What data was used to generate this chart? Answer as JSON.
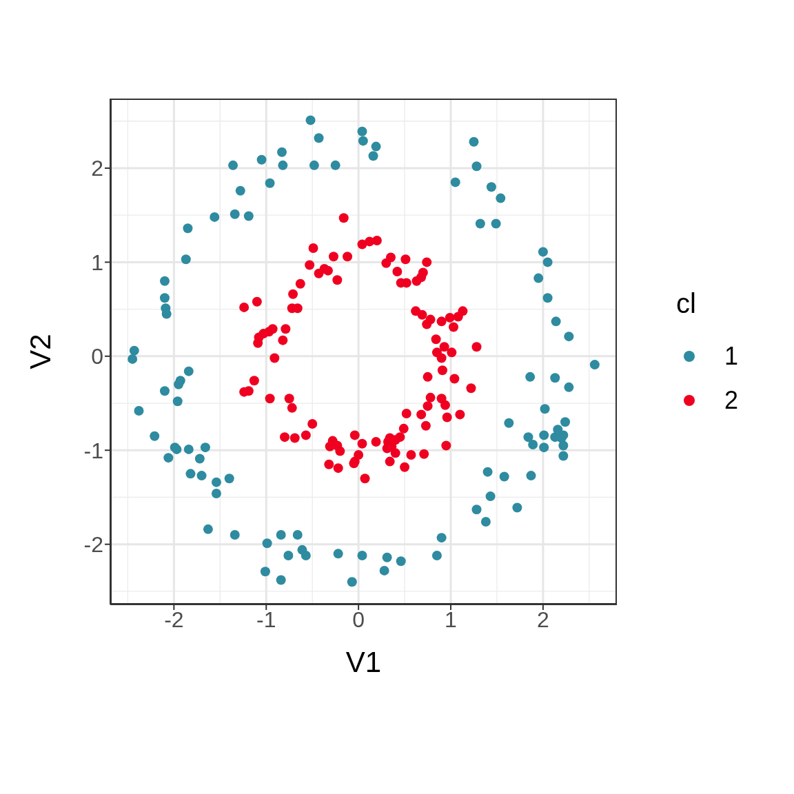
{
  "chart_data": {
    "type": "scatter",
    "xlabel": "V1",
    "ylabel": "V2",
    "legend_title": "cl",
    "xlim": [
      -2.69,
      2.8
    ],
    "ylim": [
      -2.64,
      2.74
    ],
    "xticks": [
      -2,
      -1,
      0,
      1,
      2
    ],
    "yticks": [
      -2,
      -1,
      0,
      1,
      2
    ],
    "grid": true,
    "legend": "right",
    "marker": "circle",
    "series": [
      {
        "name": "1",
        "color": "#2e8ba0",
        "x": [
          -0.52,
          -0.43,
          0.04,
          0.05,
          0.19,
          0.16,
          -0.48,
          -0.25,
          -0.83,
          -0.82,
          -1.05,
          -1.36,
          -0.96,
          -1.28,
          -1.56,
          -1.34,
          -1.19,
          -1.85,
          -1.87,
          -2.1,
          -2.1,
          -2.09,
          -2.08,
          -2.43,
          -2.45,
          -2.38,
          -1.84,
          -1.93,
          -1.95,
          -2.1,
          -1.96,
          -2.21,
          -1.99,
          -1.97,
          -1.84,
          -1.66,
          -2.06,
          -1.72,
          -1.82,
          -1.7,
          -1.54,
          -1.4,
          -1.54,
          -1.63,
          -1.34,
          -0.84,
          -0.66,
          -0.99,
          -0.61,
          -0.57,
          -0.76,
          -1.01,
          -0.84,
          -0.22,
          0.04,
          0.31,
          0.28,
          0.46,
          -0.07,
          0.9,
          0.85,
          1.25,
          1.28,
          1.05,
          1.44,
          1.54,
          1.32,
          1.49,
          2.0,
          2.05,
          1.95,
          2.05,
          2.14,
          2.28,
          2.56,
          1.86,
          2.13,
          2.28,
          2.02,
          2.24,
          1.63,
          1.84,
          1.89,
          2.01,
          2.22,
          2.13,
          2.16,
          2.2,
          2.22,
          2.22,
          2.01,
          1.4,
          1.58,
          1.87,
          1.43,
          1.28,
          1.38,
          1.72
        ],
        "values": [
          2.51,
          2.32,
          2.39,
          2.29,
          2.23,
          2.13,
          2.03,
          2.03,
          2.17,
          2.03,
          2.09,
          2.03,
          1.84,
          1.76,
          1.48,
          1.51,
          1.49,
          1.36,
          1.03,
          0.8,
          0.62,
          0.51,
          0.45,
          0.06,
          -0.03,
          -0.58,
          -0.16,
          -0.26,
          -0.3,
          -0.37,
          -0.48,
          -0.85,
          -0.97,
          -0.99,
          -0.99,
          -0.97,
          -1.08,
          -1.09,
          -1.25,
          -1.27,
          -1.34,
          -1.3,
          -1.46,
          -1.84,
          -1.9,
          -1.9,
          -1.9,
          -1.99,
          -2.06,
          -2.12,
          -2.12,
          -2.29,
          -2.38,
          -2.1,
          -2.12,
          -2.14,
          -2.28,
          -2.18,
          -2.4,
          -1.93,
          -2.12,
          2.28,
          2.02,
          1.85,
          1.8,
          1.68,
          1.41,
          1.41,
          1.11,
          1.0,
          0.83,
          0.62,
          0.37,
          0.21,
          -0.09,
          -0.22,
          -0.23,
          -0.33,
          -0.56,
          -0.7,
          -0.71,
          -0.86,
          -0.94,
          -0.84,
          -0.84,
          -0.86,
          -0.78,
          -0.87,
          -0.95,
          -1.06,
          -0.97,
          -1.23,
          -1.28,
          -1.27,
          -1.49,
          -1.63,
          -1.76,
          -1.61
        ]
      },
      {
        "name": "2",
        "color": "#ef0020",
        "x": [
          -0.16,
          0.04,
          0.12,
          0.2,
          -0.12,
          -0.27,
          -0.49,
          -0.53,
          -0.37,
          -0.43,
          -0.33,
          -0.23,
          -0.63,
          -0.71,
          -0.72,
          -0.66,
          -1.24,
          -1.1,
          0.3,
          0.35,
          0.51,
          0.74,
          0.42,
          0.46,
          0.52,
          0.63,
          0.7,
          0.68,
          0.62,
          0.69,
          0.78,
          0.74,
          0.9,
          0.99,
          1.08,
          1.13,
          1.03,
          0.84,
          0.93,
          0.85,
          1.01,
          0.9,
          0.91,
          0.75,
          1.28,
          1.04,
          1.22,
          0.78,
          0.9,
          0.94,
          0.75,
          0.68,
          0.73,
          0.52,
          0.96,
          1.1,
          0.95,
          0.71,
          0.57,
          0.49,
          0.45,
          0.4,
          0.34,
          0.36,
          0.4,
          0.32,
          0.31,
          0.34,
          0.5,
          0.19,
          -0.04,
          0.04,
          0.0,
          -0.04,
          -0.05,
          0.07,
          -0.23,
          -0.28,
          -0.31,
          -0.2,
          -0.32,
          -0.22,
          -0.5,
          -0.57,
          -0.69,
          -0.8,
          -0.72,
          -0.75,
          -0.96,
          -1.13,
          -1.24,
          -1.19,
          -0.91,
          -0.82,
          -1.03,
          -0.97,
          -0.93,
          -1.08,
          -1.09,
          -0.79
        ],
        "values": [
          1.47,
          1.19,
          1.22,
          1.23,
          1.06,
          1.06,
          1.15,
          0.97,
          0.93,
          0.88,
          0.91,
          0.81,
          0.77,
          0.66,
          0.51,
          0.51,
          0.52,
          0.58,
          0.99,
          1.05,
          1.03,
          1.0,
          0.9,
          0.78,
          0.78,
          0.8,
          0.89,
          0.84,
          0.48,
          0.44,
          0.39,
          0.34,
          0.37,
          0.41,
          0.42,
          0.48,
          0.31,
          0.18,
          0.1,
          0.04,
          0.04,
          -0.02,
          -0.15,
          -0.22,
          0.1,
          -0.24,
          -0.34,
          -0.44,
          -0.45,
          -0.52,
          -0.53,
          -0.62,
          -0.74,
          -0.61,
          -0.65,
          -0.62,
          -0.95,
          -1.04,
          -1.05,
          -0.77,
          -0.86,
          -0.89,
          -0.87,
          -0.96,
          -1.03,
          -0.91,
          -0.98,
          -1.12,
          -1.18,
          -0.91,
          -0.84,
          -0.93,
          -1.05,
          -1.12,
          -1.14,
          -1.3,
          -0.95,
          -0.9,
          -0.96,
          -1.01,
          -1.15,
          -1.19,
          -0.72,
          -0.84,
          -0.87,
          -0.86,
          -0.55,
          -0.45,
          -0.45,
          -0.26,
          -0.38,
          -0.37,
          -0.02,
          0.17,
          0.24,
          0.26,
          0.29,
          0.2,
          0.14,
          0.29
        ]
      }
    ]
  }
}
